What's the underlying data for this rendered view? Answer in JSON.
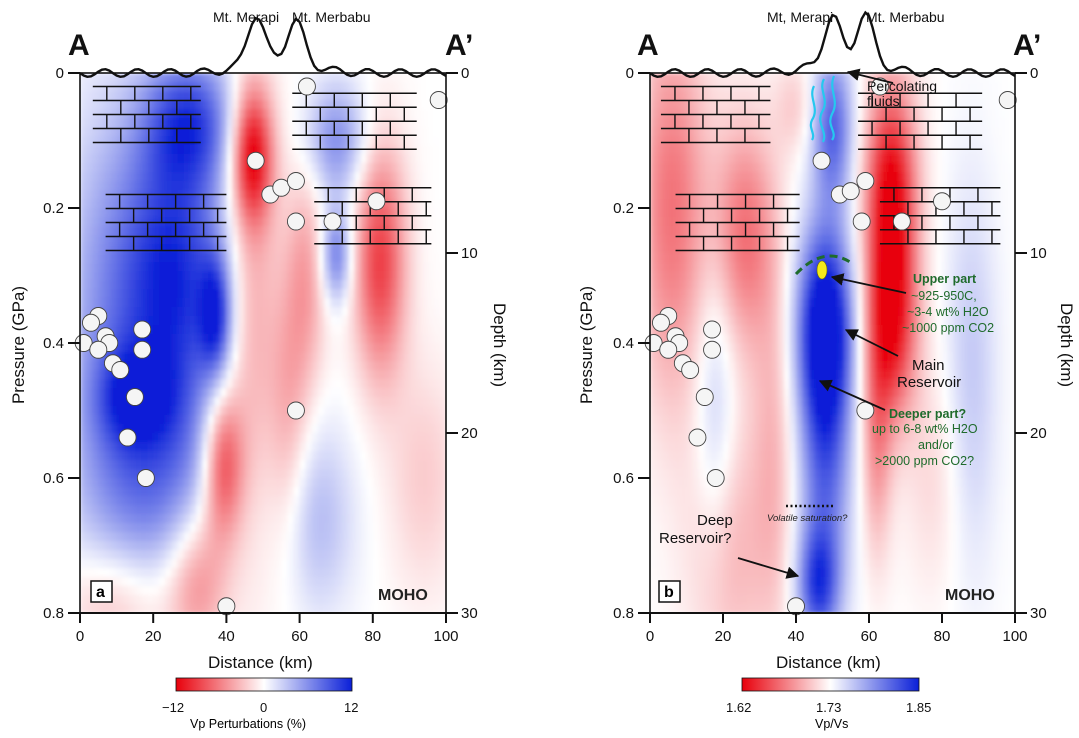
{
  "chart_data": [
    {
      "type": "heatmap",
      "panel_label": "a",
      "peaks": [
        "Mt. Merapi",
        "Mt. Merbabu"
      ],
      "section_labels": [
        "A",
        "A’"
      ],
      "xlabel": "Distance (km)",
      "ylabel_left": "Pressure (GPa)",
      "ylabel_right": "Depth (km)",
      "xlim": [
        0,
        100
      ],
      "ylim_pressure": [
        0,
        0.8
      ],
      "ylim_depth": [
        0,
        30
      ],
      "x_ticks": [
        0,
        20,
        40,
        60,
        80,
        100
      ],
      "pressure_ticks": [
        0,
        0.2,
        0.4,
        0.6,
        0.8
      ],
      "depth_ticks": [
        0,
        10,
        20,
        30
      ],
      "moho_label": "MOHO",
      "colorbar": {
        "label": "Vp Perturbations (%)",
        "min": -12,
        "mid": 0,
        "max": 12,
        "ticks": [
          "−12",
          "0",
          "12"
        ]
      },
      "anomalies": [
        {
          "x": 30,
          "p": 0.07,
          "sx": 9,
          "sy": 0.07,
          "v": 0.7
        },
        {
          "x": 26,
          "p": 0.3,
          "sx": 10,
          "sy": 0.15,
          "v": 0.9
        },
        {
          "x": 8,
          "p": 0.33,
          "sx": 10,
          "sy": 0.2,
          "v": 0.4
        },
        {
          "x": 37,
          "p": 0.36,
          "sx": 3,
          "sy": 0.06,
          "v": 0.7
        },
        {
          "x": 15,
          "p": 0.48,
          "sx": 7,
          "sy": 0.05,
          "v": 0.5
        },
        {
          "x": 20,
          "p": 0.6,
          "sx": 14,
          "sy": 0.12,
          "v": 0.55
        },
        {
          "x": 47,
          "p": 0.12,
          "sx": 4,
          "sy": 0.07,
          "v": -0.9
        },
        {
          "x": 47,
          "p": 0.35,
          "sx": 5,
          "sy": 0.25,
          "v": -0.35
        },
        {
          "x": 39,
          "p": 0.58,
          "sx": 4,
          "sy": 0.08,
          "v": -0.8
        },
        {
          "x": 32,
          "p": 0.75,
          "sx": 6,
          "sy": 0.08,
          "v": -0.5
        },
        {
          "x": 10,
          "p": 0.78,
          "sx": 10,
          "sy": 0.06,
          "v": -0.3
        },
        {
          "x": 82,
          "p": 0.28,
          "sx": 5,
          "sy": 0.12,
          "v": -0.75
        },
        {
          "x": 62,
          "p": 0.3,
          "sx": 4,
          "sy": 0.12,
          "v": -0.35
        },
        {
          "x": 70,
          "p": 0.1,
          "sx": 6,
          "sy": 0.06,
          "v": 0.5
        },
        {
          "x": 70,
          "p": 0.27,
          "sx": 3,
          "sy": 0.05,
          "v": 0.6
        },
        {
          "x": 65,
          "p": 0.66,
          "sx": 7,
          "sy": 0.1,
          "v": 0.3
        },
        {
          "x": 57,
          "p": 0.5,
          "sx": 4,
          "sy": 0.15,
          "v": -0.3
        },
        {
          "x": 94,
          "p": 0.6,
          "sx": 7,
          "sy": 0.12,
          "v": -0.2
        }
      ],
      "points": [
        [
          62,
          0.02
        ],
        [
          98,
          0.04
        ],
        [
          48,
          0.13
        ],
        [
          52,
          0.18
        ],
        [
          55,
          0.17
        ],
        [
          59,
          0.16
        ],
        [
          59,
          0.22
        ],
        [
          69,
          0.22
        ],
        [
          81,
          0.19
        ],
        [
          5,
          0.36
        ],
        [
          3,
          0.37
        ],
        [
          1,
          0.4
        ],
        [
          7,
          0.39
        ],
        [
          8,
          0.4
        ],
        [
          5,
          0.41
        ],
        [
          9,
          0.43
        ],
        [
          11,
          0.44
        ],
        [
          17,
          0.38
        ],
        [
          17,
          0.41
        ],
        [
          15,
          0.48
        ],
        [
          13,
          0.54
        ],
        [
          18,
          0.6
        ],
        [
          59,
          0.5
        ],
        [
          40,
          0.79
        ]
      ]
    },
    {
      "type": "heatmap",
      "panel_label": "b",
      "peaks": [
        "Mt, Merapi",
        "Mt. Merbabu"
      ],
      "section_labels": [
        "A",
        "A’"
      ],
      "xlabel": "Distance (km)",
      "ylabel_left": "Pressure (GPa)",
      "ylabel_right": "Depth (km)",
      "xlim": [
        0,
        100
      ],
      "ylim_pressure": [
        0,
        0.8
      ],
      "ylim_depth": [
        0,
        30
      ],
      "x_ticks": [
        0,
        20,
        40,
        60,
        80,
        100
      ],
      "pressure_ticks": [
        0,
        0.2,
        0.4,
        0.6,
        0.8
      ],
      "depth_ticks": [
        0,
        10,
        20,
        30
      ],
      "moho_label": "MOHO",
      "colorbar": {
        "label": "Vp/Vs",
        "min": 1.62,
        "mid": 1.73,
        "max": 1.85,
        "ticks": [
          "1.62",
          "1.73",
          "1.85"
        ]
      },
      "anomalies": [
        {
          "x": 50,
          "p": 0.08,
          "sx": 4,
          "sy": 0.08,
          "v": 0.7
        },
        {
          "x": 48,
          "p": 0.37,
          "sx": 5.5,
          "sy": 0.1,
          "v": 1.0
        },
        {
          "x": 48,
          "p": 0.55,
          "sx": 5,
          "sy": 0.16,
          "v": 0.7
        },
        {
          "x": 46,
          "p": 0.76,
          "sx": 4,
          "sy": 0.06,
          "v": 0.7
        },
        {
          "x": 18,
          "p": 0.5,
          "sx": 4,
          "sy": 0.15,
          "v": 0.3
        },
        {
          "x": 88,
          "p": 0.45,
          "sx": 5,
          "sy": 0.2,
          "v": 0.25
        },
        {
          "x": 66,
          "p": 0.18,
          "sx": 5,
          "sy": 0.12,
          "v": -1.0
        },
        {
          "x": 66,
          "p": 0.38,
          "sx": 5,
          "sy": 0.1,
          "v": -0.8
        },
        {
          "x": 62,
          "p": 0.55,
          "sx": 3,
          "sy": 0.12,
          "v": -0.4
        },
        {
          "x": 26,
          "p": 0.24,
          "sx": 6,
          "sy": 0.12,
          "v": -0.55
        },
        {
          "x": 6,
          "p": 0.2,
          "sx": 7,
          "sy": 0.2,
          "v": -0.55
        },
        {
          "x": 22,
          "p": 0.7,
          "sx": 8,
          "sy": 0.15,
          "v": -0.3
        },
        {
          "x": 34,
          "p": 0.55,
          "sx": 4,
          "sy": 0.2,
          "v": -0.25
        },
        {
          "x": 78,
          "p": 0.6,
          "sx": 6,
          "sy": 0.12,
          "v": -0.15
        },
        {
          "x": 40,
          "p": 0.05,
          "sx": 4,
          "sy": 0.05,
          "v": -0.2
        }
      ],
      "points": [
        [
          63,
          0.02
        ],
        [
          98,
          0.04
        ],
        [
          47,
          0.13
        ],
        [
          52,
          0.18
        ],
        [
          55,
          0.175
        ],
        [
          59,
          0.16
        ],
        [
          58,
          0.22
        ],
        [
          69,
          0.22
        ],
        [
          80,
          0.19
        ],
        [
          5,
          0.36
        ],
        [
          3,
          0.37
        ],
        [
          1,
          0.4
        ],
        [
          7,
          0.39
        ],
        [
          8,
          0.4
        ],
        [
          5,
          0.41
        ],
        [
          9,
          0.43
        ],
        [
          11,
          0.44
        ],
        [
          17,
          0.38
        ],
        [
          17,
          0.41
        ],
        [
          15,
          0.48
        ],
        [
          13,
          0.54
        ],
        [
          18,
          0.6
        ],
        [
          59,
          0.5
        ],
        [
          40,
          0.79
        ]
      ],
      "annotations": {
        "percolating": [
          "Percolating",
          "fluids"
        ],
        "upper_title": "Upper part",
        "upper_lines": [
          "~925-950C,",
          "~3-4 wt% H2O",
          "~1000 ppm CO2"
        ],
        "main_reservoir": [
          "Main",
          "Reservoir"
        ],
        "deeper_title": "Deeper part?",
        "deeper_lines": [
          "up to 6-8 wt% H2O",
          "and/or",
          ">2000 ppm CO2?"
        ],
        "volatile": "Volatile saturation?",
        "deep_reservoir": [
          "Deep",
          "Reservoir?"
        ]
      }
    }
  ]
}
